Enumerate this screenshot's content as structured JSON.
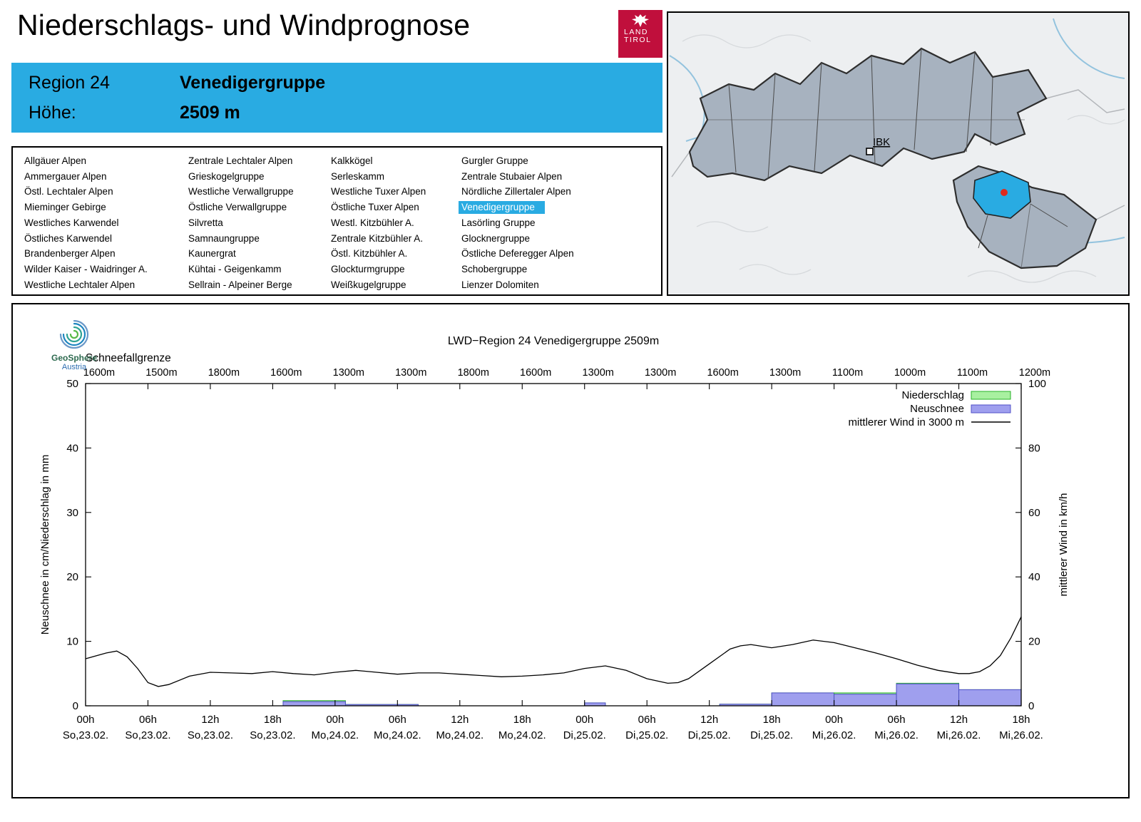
{
  "page": {
    "title": "Niederschlags- und Windprognose"
  },
  "logo": {
    "line1": "LAND",
    "line2": "TIROL"
  },
  "region_header": {
    "region_label": "Region 24",
    "region_name": "Venedigergruppe",
    "altitude_label": "Höhe:",
    "altitude_value": "2509 m"
  },
  "region_list": {
    "selected": "Venedigergruppe",
    "columns": [
      [
        "Allgäuer Alpen",
        "Ammergauer Alpen",
        "Östl. Lechtaler Alpen",
        "Mieminger Gebirge",
        "Westliches Karwendel",
        "Östliches Karwendel",
        "Brandenberger Alpen",
        "Wilder Kaiser - Waidringer A.",
        "Westliche Lechtaler Alpen"
      ],
      [
        "Zentrale Lechtaler Alpen",
        "Grieskogelgruppe",
        "Westliche Verwallgruppe",
        "Östliche Verwallgruppe",
        "Silvretta",
        "Samnaungruppe",
        "Kaunergrat",
        "Kühtai - Geigenkamm",
        "Sellrain - Alpeiner Berge"
      ],
      [
        "Kalkkögel",
        "Serleskamm",
        "Westliche Tuxer Alpen",
        "Östliche Tuxer Alpen",
        "Westl. Kitzbühler A.",
        "Zentrale Kitzbühler A.",
        "Östl. Kitzbühler A.",
        "Glockturmgruppe",
        "Weißkugelgruppe"
      ],
      [
        "Gurgler Gruppe",
        "Zentrale Stubaier Alpen",
        "Nördliche Zillertaler Alpen",
        "Venedigergruppe",
        "Lasörling Gruppe",
        "Glocknergruppe",
        "Östliche Deferegger Alpen",
        "Schobergruppe",
        "Lienzer Dolomiten"
      ]
    ]
  },
  "map": {
    "city_label": "IBK"
  },
  "geosphere": {
    "line1": "GeoSphere",
    "line2": "Austria"
  },
  "colors": {
    "accent": "#29ABE2",
    "niederschlag_fill": "#a8f0a0",
    "niederschlag_border": "#27b227",
    "neuschnee_fill": "#9f9fee",
    "neuschnee_border": "#5050c8",
    "wind_line": "#000000",
    "selected_region_fill": "#29ABE2",
    "marker_red": "#e02a1c"
  },
  "chart_data": {
    "type": "bar",
    "title": "LWD−Region 24 Venedigergruppe 2509m",
    "snowline_label": "Schneefallgrenze",
    "snowline_values": [
      "1600m",
      "1500m",
      "1800m",
      "1600m",
      "1300m",
      "1300m",
      "1800m",
      "1600m",
      "1300m",
      "1300m",
      "1600m",
      "1300m",
      "1100m",
      "1000m",
      "1100m",
      "1200m"
    ],
    "ylabel_left": "Neuschnee in cm/Niederschlag in mm",
    "ylabel_right": "mittlerer Wind in km/h",
    "ylim_left": [
      0,
      50
    ],
    "ylim_right": [
      0,
      100
    ],
    "yticks_left": [
      0,
      10,
      20,
      30,
      40,
      50
    ],
    "yticks_right": [
      0,
      20,
      40,
      60,
      80,
      100
    ],
    "x_range": [
      0,
      90
    ],
    "xticks": [
      {
        "hour": "00h",
        "date": "So,23.02."
      },
      {
        "hour": "06h",
        "date": "So,23.02."
      },
      {
        "hour": "12h",
        "date": "So,23.02."
      },
      {
        "hour": "18h",
        "date": "So,23.02."
      },
      {
        "hour": "00h",
        "date": "Mo,24.02."
      },
      {
        "hour": "06h",
        "date": "Mo,24.02."
      },
      {
        "hour": "12h",
        "date": "Mo,24.02."
      },
      {
        "hour": "18h",
        "date": "Mo,24.02."
      },
      {
        "hour": "00h",
        "date": "Di,25.02."
      },
      {
        "hour": "06h",
        "date": "Di,25.02."
      },
      {
        "hour": "12h",
        "date": "Di,25.02."
      },
      {
        "hour": "18h",
        "date": "Di,25.02."
      },
      {
        "hour": "00h",
        "date": "Mi,26.02."
      },
      {
        "hour": "06h",
        "date": "Mi,26.02."
      },
      {
        "hour": "12h",
        "date": "Mi,26.02."
      },
      {
        "hour": "18h",
        "date": "Mi,26.02."
      }
    ],
    "legend": [
      {
        "label": "Niederschlag",
        "type": "bar",
        "fill": "#a8f0a0",
        "border": "#27b227"
      },
      {
        "label": "Neuschnee",
        "type": "bar",
        "fill": "#9f9fee",
        "border": "#5050c8"
      },
      {
        "label": "mittlerer Wind in 3000 m",
        "type": "line",
        "color": "#000000"
      }
    ],
    "bars": [
      {
        "start": 19,
        "end": 25,
        "niederschlag": 0.8,
        "neuschnee": 0.65
      },
      {
        "start": 25,
        "end": 32,
        "niederschlag": 0.2,
        "neuschnee": 0.2
      },
      {
        "start": 48,
        "end": 50,
        "niederschlag": 0.45,
        "neuschnee": 0.45
      },
      {
        "start": 61,
        "end": 66,
        "niederschlag": 0.25,
        "neuschnee": 0.25
      },
      {
        "start": 66,
        "end": 72,
        "niederschlag": 2.0,
        "neuschnee": 2.0
      },
      {
        "start": 72,
        "end": 78,
        "niederschlag": 2.0,
        "neuschnee": 1.8
      },
      {
        "start": 78,
        "end": 84,
        "niederschlag": 3.5,
        "neuschnee": 3.4
      },
      {
        "start": 84,
        "end": 90,
        "niederschlag": 2.5,
        "neuschnee": 2.5
      }
    ],
    "wind_kmh_note": "values below are in left-axis units (right axis km/h = value × 2)",
    "wind": [
      [
        0,
        7.3
      ],
      [
        2,
        8.2
      ],
      [
        3,
        8.5
      ],
      [
        4,
        7.6
      ],
      [
        5,
        5.8
      ],
      [
        6,
        3.6
      ],
      [
        7,
        3.0
      ],
      [
        8,
        3.3
      ],
      [
        10,
        4.6
      ],
      [
        12,
        5.2
      ],
      [
        14,
        5.1
      ],
      [
        16,
        5.0
      ],
      [
        18,
        5.3
      ],
      [
        20,
        5.0
      ],
      [
        22,
        4.8
      ],
      [
        24,
        5.2
      ],
      [
        26,
        5.5
      ],
      [
        28,
        5.2
      ],
      [
        30,
        4.9
      ],
      [
        32,
        5.1
      ],
      [
        34,
        5.1
      ],
      [
        36,
        4.9
      ],
      [
        38,
        4.7
      ],
      [
        40,
        4.5
      ],
      [
        42,
        4.6
      ],
      [
        44,
        4.8
      ],
      [
        46,
        5.1
      ],
      [
        48,
        5.8
      ],
      [
        50,
        6.2
      ],
      [
        52,
        5.5
      ],
      [
        54,
        4.2
      ],
      [
        56,
        3.5
      ],
      [
        57,
        3.6
      ],
      [
        58,
        4.2
      ],
      [
        60,
        6.5
      ],
      [
        62,
        8.8
      ],
      [
        63,
        9.3
      ],
      [
        64,
        9.5
      ],
      [
        66,
        9.0
      ],
      [
        68,
        9.5
      ],
      [
        70,
        10.2
      ],
      [
        72,
        9.8
      ],
      [
        74,
        9.0
      ],
      [
        76,
        8.2
      ],
      [
        78,
        7.3
      ],
      [
        80,
        6.3
      ],
      [
        82,
        5.5
      ],
      [
        84,
        5.0
      ],
      [
        85,
        5.0
      ],
      [
        86,
        5.3
      ],
      [
        87,
        6.2
      ],
      [
        88,
        7.8
      ],
      [
        89,
        10.5
      ],
      [
        90,
        13.8
      ]
    ]
  }
}
